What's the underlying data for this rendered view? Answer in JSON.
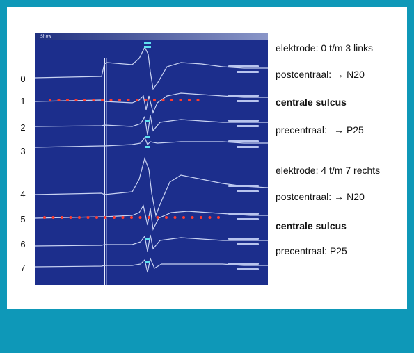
{
  "window_title": "Show",
  "channels": [
    "0",
    "1",
    "2",
    "3",
    "4",
    "5",
    "6",
    "7"
  ],
  "annotations": {
    "left_header": "elektrode: 0 t/m 3 links",
    "left_post_prefix": "postcentraal:",
    "left_post_arrow": "→",
    "left_post_wave": "N20",
    "left_sulcus": "centrale sulcus",
    "left_pre_prefix": "precentraal:",
    "left_pre_arrow": "→",
    "left_pre_wave": "P25",
    "right_header": "elektrode: 4 t/m 7 rechts",
    "right_post_prefix": "postcentraal:",
    "right_post_arrow": "→",
    "right_post_wave": "N20",
    "right_sulcus": "centrale sulcus",
    "right_pre": "precentraal: P25"
  },
  "colors": {
    "frame": "#0e98b8",
    "plot_background": "#1c2e8c",
    "trace": "#c9d3f2",
    "marker_dots": "#ff3b2f",
    "peak_label": "#5fe0f0"
  }
}
